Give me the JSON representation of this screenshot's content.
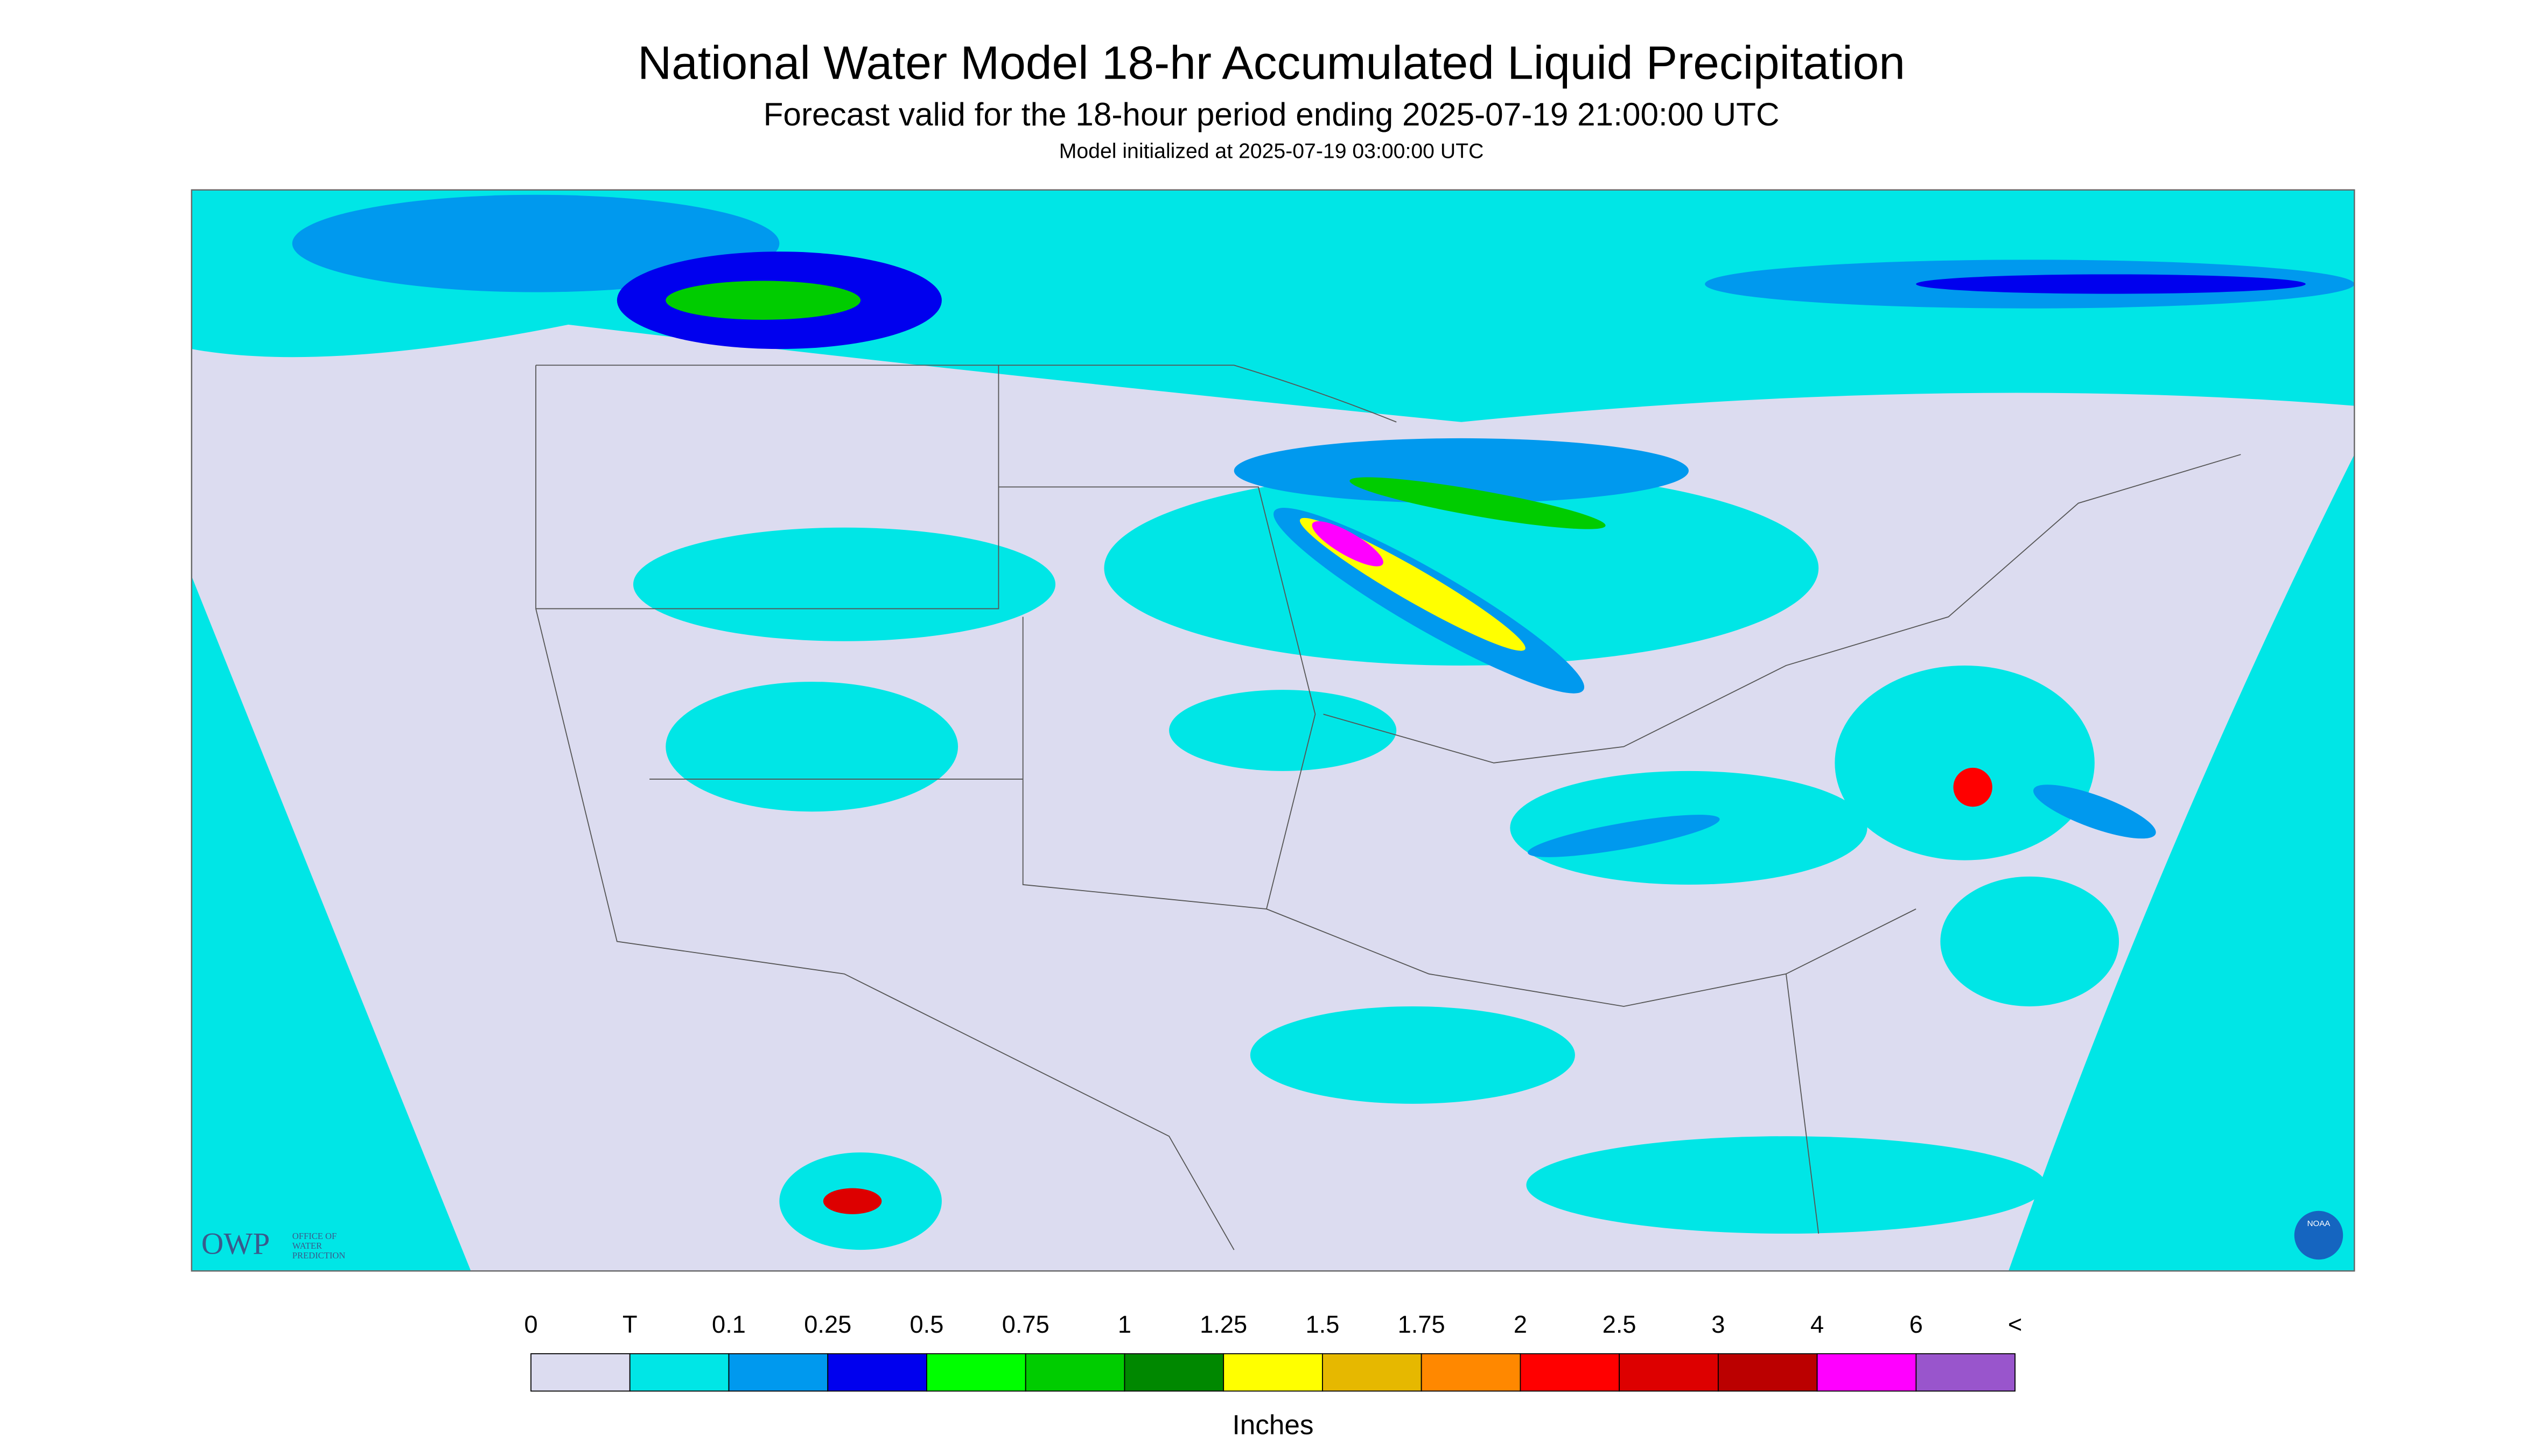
{
  "header": {
    "title": "National Water Model 18-hr Accumulated Liquid Precipitation",
    "subtitle": "Forecast valid for the 18-hour period ending 2025-07-19 21:00:00 UTC",
    "init": "Model initialized at 2025-07-19 03:00:00 UTC"
  },
  "logos": {
    "owp": "OWP",
    "owp_line1": "OFFICE OF",
    "owp_line2": "WATER",
    "owp_line3": "PREDICTION",
    "noaa": "NOAA"
  },
  "legend": {
    "labels": [
      "0",
      "T",
      "0.1",
      "0.25",
      "0.5",
      "0.75",
      "1",
      "1.25",
      "1.5",
      "1.75",
      "2",
      "2.5",
      "3",
      "4",
      "6",
      "<"
    ],
    "colors": [
      "#dcdcf0",
      "#00e6e6",
      "#0099ee",
      "#0000ee",
      "#00ff00",
      "#00cc00",
      "#008800",
      "#ffff00",
      "#e6b800",
      "#ff8800",
      "#ff0000",
      "#dd0000",
      "#bb0000",
      "#ff00ff",
      "#9955cc"
    ],
    "units": "Inches"
  }
}
